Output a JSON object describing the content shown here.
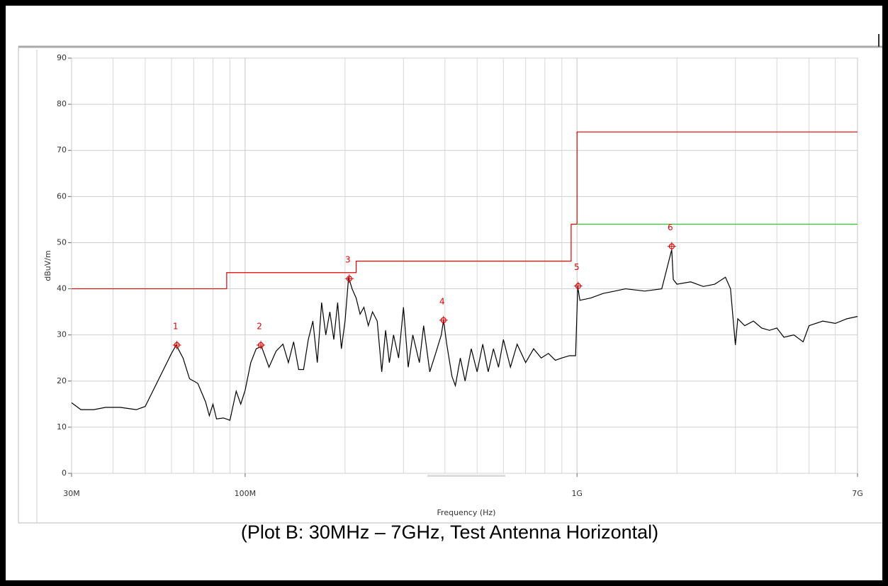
{
  "chart_data": {
    "type": "line",
    "log_x": true,
    "grid": true,
    "xlabel": "Frequency (Hz)",
    "ylabel": "dBuV/m",
    "xlim": [
      30000000,
      7000000000
    ],
    "ylim": [
      0,
      90
    ],
    "xticks": [
      {
        "value": 30000000,
        "label": "30M"
      },
      {
        "value": 100000000,
        "label": "100M"
      },
      {
        "value": 1000000000,
        "label": "1G"
      },
      {
        "value": 7000000000,
        "label": "7G"
      }
    ],
    "xminor": [
      40000000,
      50000000,
      60000000,
      70000000,
      80000000,
      90000000,
      200000000,
      300000000,
      400000000,
      500000000,
      600000000,
      700000000,
      800000000,
      900000000,
      2000000000,
      3000000000,
      4000000000,
      5000000000,
      6000000000
    ],
    "yticks": [
      0,
      10,
      20,
      30,
      40,
      50,
      60,
      70,
      80,
      90
    ],
    "series": [
      {
        "color": "#000000",
        "x": [
          30000000,
          32000000,
          35000000,
          38000000,
          42000000,
          47000000,
          50000000,
          55000000,
          60000000,
          62000000,
          65000000,
          68000000,
          72000000,
          76000000,
          78000000,
          80000000,
          82000000,
          86000000,
          90000000,
          94000000,
          97000000,
          100000000,
          104000000,
          108000000,
          112000000,
          118000000,
          124000000,
          130000000,
          135000000,
          140000000,
          145000000,
          150000000,
          155000000,
          160000000,
          165000000,
          170000000,
          175000000,
          180000000,
          185000000,
          190000000,
          195000000,
          200000000,
          205000000,
          210000000,
          216000000,
          222000000,
          228000000,
          235000000,
          242000000,
          250000000,
          258000000,
          265000000,
          272000000,
          280000000,
          290000000,
          300000000,
          310000000,
          320000000,
          335000000,
          345000000,
          360000000,
          375000000,
          390000000,
          396000000,
          405000000,
          420000000,
          430000000,
          445000000,
          460000000,
          480000000,
          500000000,
          520000000,
          540000000,
          560000000,
          580000000,
          600000000,
          630000000,
          660000000,
          700000000,
          740000000,
          780000000,
          820000000,
          860000000,
          900000000,
          950000000,
          990000000,
          1005000000,
          1020000000,
          1100000000,
          1200000000,
          1300000000,
          1400000000,
          1600000000,
          1800000000,
          1929000000,
          1950000000,
          2000000000,
          2200000000,
          2400000000,
          2600000000,
          2800000000,
          2900000000,
          3000000000,
          3050000000,
          3200000000,
          3400000000,
          3600000000,
          3800000000,
          4000000000,
          4200000000,
          4500000000,
          4800000000,
          5000000000,
          5500000000,
          6000000000,
          6500000000,
          7000000000
        ],
        "values": [
          15.3,
          13.8,
          13.8,
          14.3,
          14.3,
          13.8,
          14.5,
          20.5,
          26,
          27.8,
          25,
          20.5,
          19.5,
          15.5,
          12.5,
          15,
          11.8,
          12,
          11.5,
          17.8,
          15,
          18,
          24,
          27,
          27.5,
          23,
          26.5,
          28,
          24,
          28.5,
          22.5,
          22.5,
          29,
          33,
          24,
          37,
          30,
          35,
          29,
          37,
          27,
          33,
          42.5,
          40,
          38,
          34.5,
          36,
          32,
          35,
          33,
          22,
          31,
          24,
          30,
          25,
          36,
          23,
          30,
          24,
          32,
          22,
          26,
          30,
          33.2,
          28,
          21,
          19,
          25,
          20,
          27,
          22,
          28,
          22,
          27,
          23,
          29,
          23,
          28,
          24,
          27,
          25,
          26,
          24.5,
          25,
          25.5,
          25.5,
          40.5,
          37.5,
          38,
          39,
          39.5,
          40,
          39.5,
          40,
          48.5,
          42,
          41,
          41.5,
          40.5,
          41,
          42.5,
          40,
          27.8,
          33.5,
          32,
          33,
          31.5,
          31,
          31.5,
          29.5,
          30,
          28.5,
          32,
          33,
          32.5,
          33.5,
          34
        ]
      },
      {
        "color": "#e00000",
        "x": [
          30000000,
          88000000,
          88000000,
          216000000,
          216000000,
          960000000,
          960000000,
          1000000000,
          1000000000,
          7000000000
        ],
        "values": [
          40,
          40,
          43.5,
          43.5,
          46,
          46,
          54,
          54,
          74,
          74
        ]
      },
      {
        "color": "#33cc33",
        "x": [
          1000000000,
          7000000000
        ],
        "values": [
          54,
          54
        ]
      }
    ],
    "markers": {
      "color": "#e00000",
      "labels": [
        "1",
        "2",
        "3",
        "4",
        "5",
        "6"
      ],
      "x": [
        62300000,
        111500000,
        206000000,
        396000000,
        1008000000,
        1929000000
      ],
      "values": [
        27.8,
        27.8,
        42.2,
        33.2,
        40.6,
        49.2
      ]
    }
  },
  "caption": "(Plot B: 30MHz – 7GHz, Test Antenna Horizontal)"
}
